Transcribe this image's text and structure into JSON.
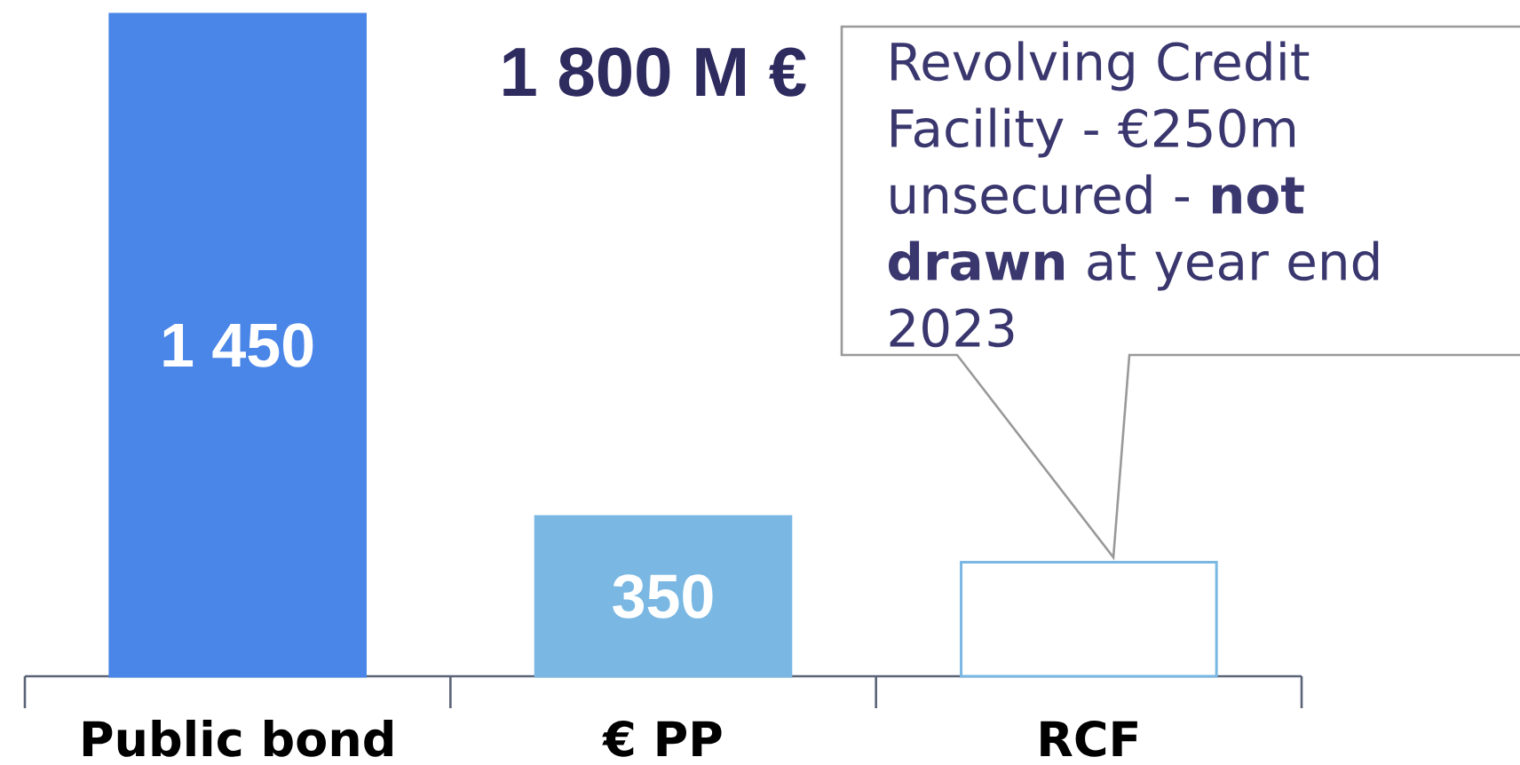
{
  "chart_data": {
    "type": "bar",
    "categories": [
      "Public bond",
      "€ PP",
      "RCF"
    ],
    "values": [
      1450,
      350,
      250
    ],
    "colors": [
      "#4a86e8",
      "#7ab8e3",
      "#ffffff"
    ],
    "value_labels": [
      "1 450",
      "350",
      null
    ],
    "annotations": [
      "1 800 M €",
      "Revolving Credit Facility - €250m unsecured - **not drawn** at year end 2023"
    ]
  }
}
